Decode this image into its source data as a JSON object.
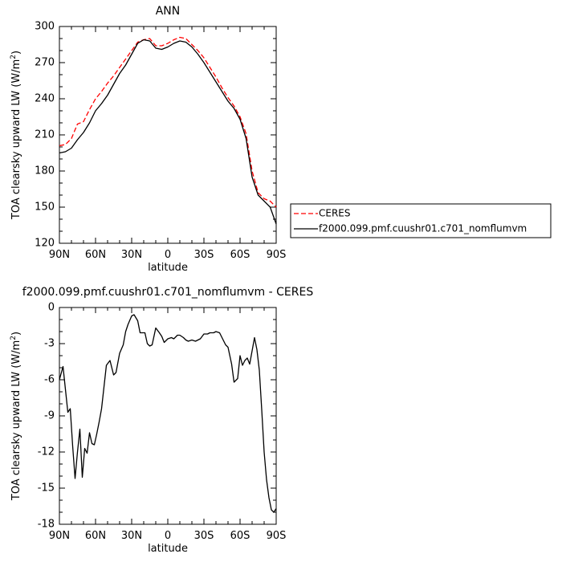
{
  "chart_data": [
    {
      "type": "line",
      "title": "ANN",
      "xlabel": "latitude",
      "ylabel": "TOA clearsky upward LW (W/m²)",
      "ylabel_main": "TOA clearsky upward LW (W/m",
      "ylabel_sup": "2",
      "ylabel_end": ")",
      "xlim": [
        90,
        -90
      ],
      "ylim": [
        120,
        300
      ],
      "x_ticks": [
        90,
        60,
        30,
        0,
        -30,
        -60,
        -90
      ],
      "x_tick_labels": [
        "90N",
        "60N",
        "30N",
        "0",
        "30S",
        "60S",
        "90S"
      ],
      "y_ticks": [
        120,
        150,
        180,
        210,
        240,
        270,
        300
      ],
      "y_tick_labels": [
        "120",
        "150",
        "180",
        "210",
        "240",
        "270",
        "300"
      ],
      "legend": {
        "placement": "right"
      },
      "series": [
        {
          "name": "CERES",
          "color": "#ff0000",
          "dash": "dashed",
          "x": [
            90,
            85,
            80,
            75,
            70,
            65,
            60,
            55,
            50,
            45,
            40,
            35,
            30,
            25,
            20,
            15,
            10,
            5,
            0,
            -5,
            -10,
            -15,
            -20,
            -25,
            -30,
            -35,
            -40,
            -45,
            -50,
            -55,
            -60,
            -65,
            -70,
            -75,
            -80,
            -85,
            -90
          ],
          "values": [
            201,
            202,
            207,
            219,
            221,
            231,
            240,
            246,
            253,
            259,
            266,
            273,
            280,
            287,
            289,
            290,
            284,
            284,
            286,
            289,
            291,
            290,
            285,
            280,
            274,
            266,
            258,
            249,
            241,
            234,
            225,
            211,
            180,
            162,
            157,
            155,
            150
          ]
        },
        {
          "name": "f2000.099.pmf.cuushr01.c701_nomflumvm",
          "color": "#000000",
          "dash": "solid",
          "x": [
            90,
            85,
            80,
            75,
            70,
            65,
            60,
            55,
            50,
            45,
            40,
            35,
            30,
            25,
            20,
            15,
            10,
            5,
            0,
            -5,
            -10,
            -15,
            -20,
            -25,
            -30,
            -35,
            -40,
            -45,
            -50,
            -55,
            -60,
            -65,
            -70,
            -75,
            -80,
            -85,
            -90
          ],
          "values": [
            195,
            196,
            199,
            206,
            212,
            220,
            230,
            236,
            243,
            252,
            261,
            268,
            277,
            286,
            289,
            288,
            282,
            281,
            283,
            286,
            288,
            287,
            283,
            277,
            270,
            262,
            254,
            246,
            238,
            232,
            223,
            207,
            175,
            160,
            155,
            150,
            136
          ]
        }
      ]
    },
    {
      "type": "line",
      "title": "f2000.099.pmf.cuushr01.c701_nomflumvm - CERES",
      "xlabel": "latitude",
      "ylabel": "TOA clearsky upward LW (W/m²)",
      "ylabel_main": "TOA clearsky upward LW (W/m",
      "ylabel_sup": "2",
      "ylabel_end": ")",
      "xlim": [
        90,
        -90
      ],
      "ylim": [
        -18,
        0
      ],
      "x_ticks": [
        90,
        60,
        30,
        0,
        -30,
        -60,
        -90
      ],
      "x_tick_labels": [
        "90N",
        "60N",
        "30N",
        "0",
        "30S",
        "60S",
        "90S"
      ],
      "y_ticks": [
        -18,
        -15,
        -12,
        -9,
        -6,
        -3,
        0
      ],
      "y_tick_labels": [
        "-18",
        "-15",
        "-12",
        "-9",
        "-6",
        "-3",
        "0"
      ],
      "series": [
        {
          "color": "#000000",
          "dash": "solid",
          "x": [
            90,
            87,
            85,
            83,
            81,
            79,
            77,
            75,
            73,
            71,
            69,
            67,
            65,
            63,
            61,
            59,
            57,
            55,
            53,
            51,
            48,
            45,
            43,
            40,
            37,
            35,
            33,
            30,
            28,
            25,
            23,
            21,
            19,
            17,
            15,
            13,
            10,
            7,
            5,
            3,
            0,
            -3,
            -5,
            -8,
            -10,
            -13,
            -15,
            -17,
            -20,
            -23,
            -25,
            -27,
            -30,
            -33,
            -35,
            -38,
            -40,
            -43,
            -45,
            -48,
            -50,
            -53,
            -55,
            -58,
            -60,
            -62,
            -64,
            -66,
            -68,
            -70,
            -72,
            -74,
            -76,
            -78,
            -80,
            -82,
            -84,
            -86,
            -88,
            -90
          ],
          "values": [
            -6,
            -4.9,
            -6.8,
            -8.7,
            -8.4,
            -11.5,
            -14.2,
            -12,
            -10.1,
            -14.1,
            -11.7,
            -12.1,
            -10.4,
            -11.3,
            -11.4,
            -10.5,
            -9.5,
            -8.4,
            -6.6,
            -4.8,
            -4.4,
            -5.6,
            -5.4,
            -3.8,
            -3.1,
            -2,
            -1.4,
            -0.7,
            -0.6,
            -1.1,
            -2.1,
            -2.1,
            -2.1,
            -3,
            -3.2,
            -3.1,
            -1.7,
            -2.1,
            -2.4,
            -2.9,
            -2.6,
            -2.5,
            -2.6,
            -2.3,
            -2.3,
            -2.5,
            -2.7,
            -2.8,
            -2.7,
            -2.8,
            -2.7,
            -2.6,
            -2.2,
            -2.2,
            -2.1,
            -2.1,
            -2,
            -2.1,
            -2.5,
            -3.1,
            -3.3,
            -4.7,
            -6.2,
            -5.9,
            -4,
            -4.8,
            -4.4,
            -4.2,
            -4.7,
            -3.6,
            -2.5,
            -3.5,
            -5.2,
            -8.5,
            -12,
            -14.3,
            -15.8,
            -16.8,
            -17,
            -16.7
          ]
        }
      ]
    }
  ]
}
